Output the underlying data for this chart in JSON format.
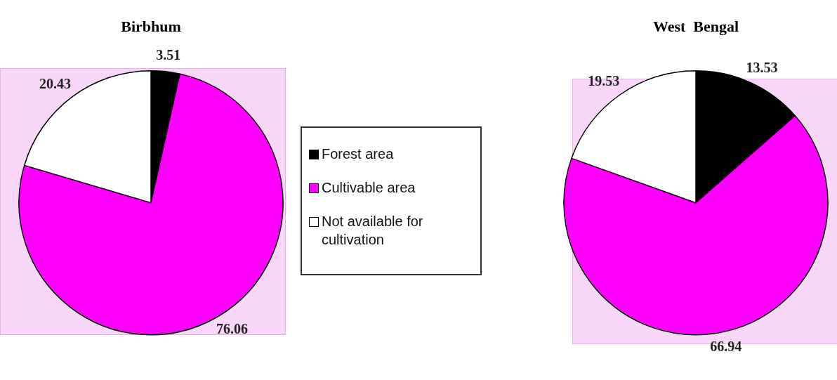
{
  "chart_data": [
    {
      "type": "pie",
      "title": "Birbhum",
      "categories": [
        "Forest area",
        "Cultivable area",
        "Not available for cultivation"
      ],
      "values": [
        3.51,
        76.06,
        20.43
      ],
      "colors": [
        "#000000",
        "#ff00ff",
        "#ffffff"
      ],
      "data_labels": true,
      "legend": "right"
    },
    {
      "type": "pie",
      "title": "West  Bengal",
      "categories": [
        null,
        null,
        null
      ],
      "values": [
        13.53,
        66.94,
        19.53
      ],
      "colors": [
        "#000000",
        "#ff00ff",
        "#ffffff"
      ],
      "data_labels": true,
      "legend": false
    }
  ]
}
